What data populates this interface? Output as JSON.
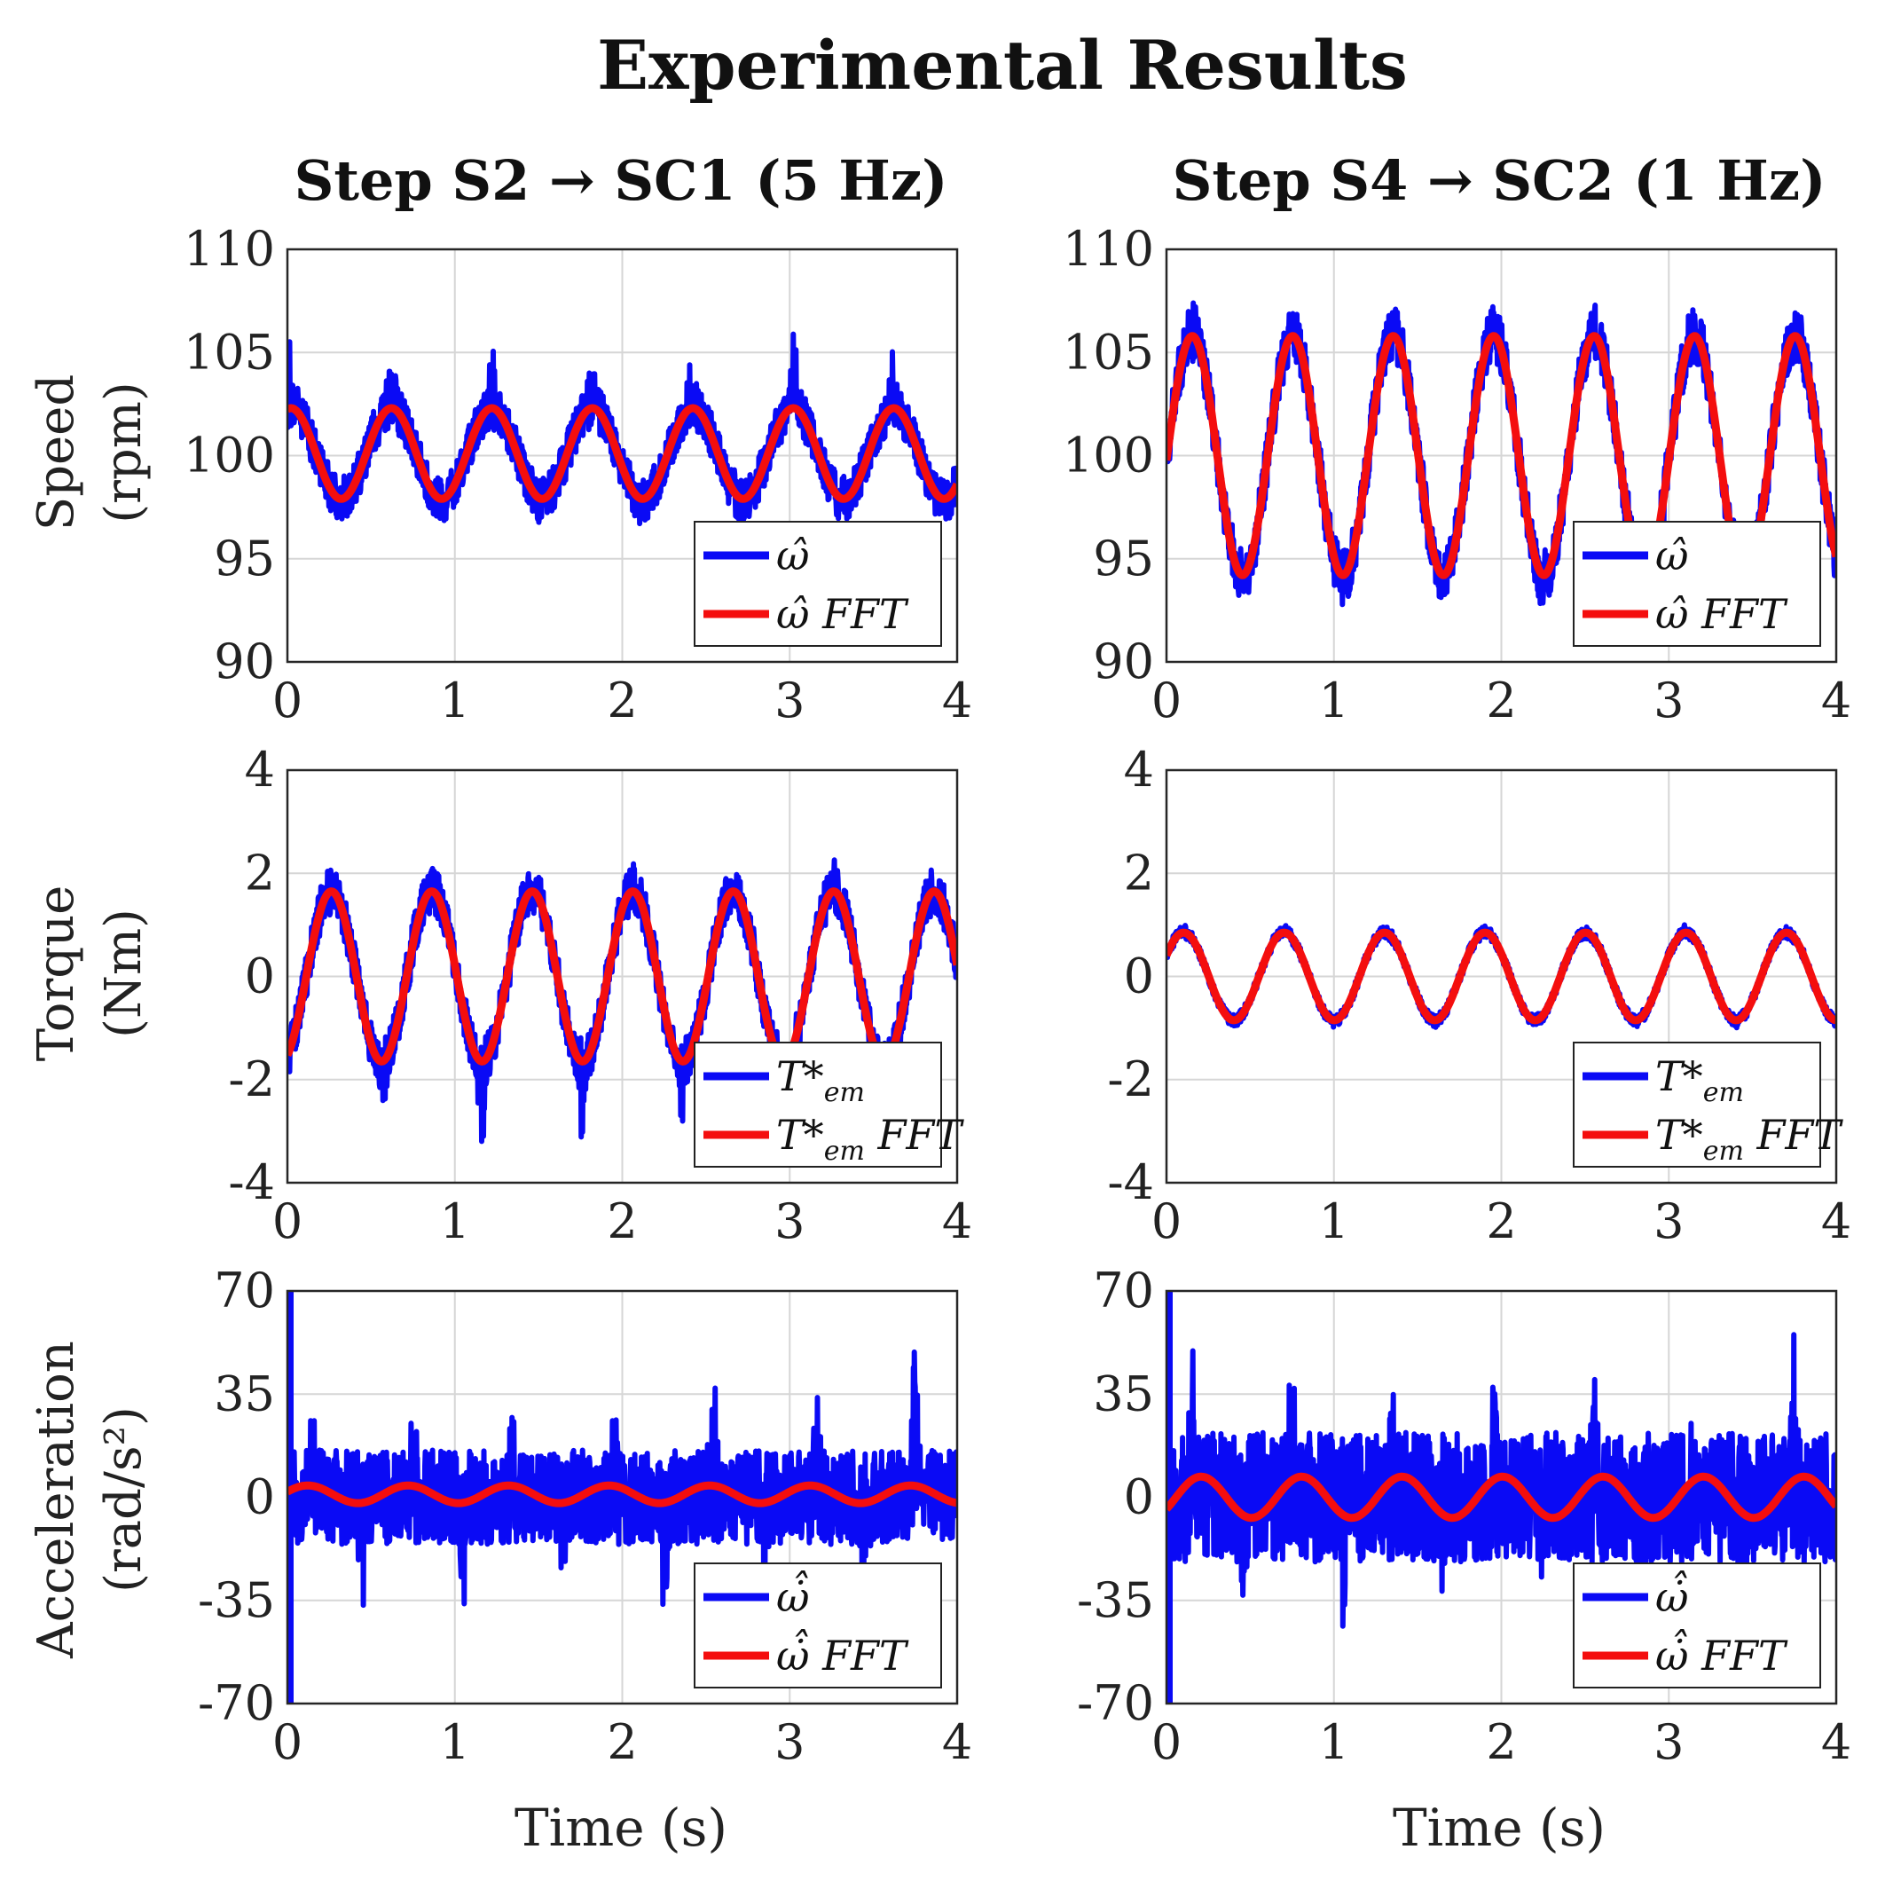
{
  "figure": {
    "title": "Experimental Results",
    "column_titles": [
      "Step S2 → SC1 (5 Hz)",
      "Step S4 → SC2 (1 Hz)"
    ],
    "row_ylabels": [
      [
        "Speed",
        "(rpm)"
      ],
      [
        "Torque",
        "(Nm)"
      ],
      [
        "Acceleration",
        "(rad/s²)"
      ]
    ],
    "xlabel": "Time (s)"
  },
  "colors": {
    "measured": "#0a0af5",
    "fft": "#f40e0e",
    "grid": "#d6d6d6",
    "axis": "#262626"
  },
  "chart_data": [
    {
      "id": "speed-s2",
      "type": "line",
      "ylim": [
        90,
        110
      ],
      "yticks": [
        "90",
        "95",
        "100",
        "105",
        "110"
      ],
      "xlim": [
        0,
        4
      ],
      "xticks": [
        "0",
        "1",
        "2",
        "3",
        "4"
      ],
      "grid": true,
      "legend_position": "bottom-right",
      "legend": [
        {
          "sym": "ω̂",
          "sub": "",
          "rest": ""
        },
        {
          "sym": "ω̂",
          "sub": "",
          "rest": "FFT"
        }
      ],
      "series": [
        {
          "name": "measured",
          "offset": 100.1,
          "amp": 2.2,
          "period": 0.6,
          "phase": 1.35,
          "noise": 1.1,
          "spike_up": 3.5,
          "spike_down": 0.5
        },
        {
          "name": "fft",
          "offset": 100.1,
          "amp": 2.2,
          "period": 0.6,
          "phase": 1.35
        }
      ]
    },
    {
      "id": "speed-s4",
      "type": "line",
      "ylim": [
        90,
        110
      ],
      "yticks": [
        "90",
        "95",
        "100",
        "105",
        "110"
      ],
      "xlim": [
        0,
        4
      ],
      "xticks": [
        "0",
        "1",
        "2",
        "3",
        "4"
      ],
      "grid": true,
      "legend_position": "bottom-right",
      "legend": [
        {
          "sym": "ω̂",
          "sub": "",
          "rest": ""
        },
        {
          "sym": "ω̂",
          "sub": "",
          "rest": "FFT"
        }
      ],
      "series": [
        {
          "name": "measured",
          "offset": 100,
          "amp": 5.8,
          "period": 0.6,
          "phase": -0.04,
          "noise": 1.3,
          "spike_up": 1.0,
          "spike_down": 0.8
        },
        {
          "name": "fft",
          "offset": 100,
          "amp": 5.8,
          "period": 0.6,
          "phase": -0.04
        }
      ]
    },
    {
      "id": "torque-s2",
      "type": "line",
      "ylim": [
        -4,
        4
      ],
      "yticks": [
        "-4",
        "-2",
        "0",
        "2",
        "4"
      ],
      "xlim": [
        0,
        4
      ],
      "xticks": [
        "0",
        "1",
        "2",
        "3",
        "4"
      ],
      "grid": true,
      "legend_position": "bottom-right",
      "legend": [
        {
          "sym": "T*",
          "sub": "em",
          "rest": ""
        },
        {
          "sym": "T*",
          "sub": "em",
          "rest": "FFT"
        }
      ],
      "series": [
        {
          "name": "measured",
          "offset": 0,
          "amp": 1.65,
          "period": 0.6,
          "phase": -1.18,
          "noise": 0.45,
          "spike_up": 0.2,
          "spike_down": 1.7
        },
        {
          "name": "fft",
          "offset": 0,
          "amp": 1.65,
          "period": 0.6,
          "phase": -1.18
        }
      ]
    },
    {
      "id": "torque-s4",
      "type": "line",
      "ylim": [
        -4,
        4
      ],
      "yticks": [
        "-4",
        "-2",
        "0",
        "2",
        "4"
      ],
      "xlim": [
        0,
        4
      ],
      "xticks": [
        "0",
        "1",
        "2",
        "3",
        "4"
      ],
      "grid": true,
      "legend_position": "bottom-right",
      "legend": [
        {
          "sym": "T*",
          "sub": "em",
          "rest": ""
        },
        {
          "sym": "T*",
          "sub": "em",
          "rest": "FFT"
        }
      ],
      "series": [
        {
          "name": "measured",
          "offset": 0,
          "amp": 0.85,
          "period": 0.6,
          "phase": 0.5,
          "noise": 0.12,
          "spike_up": 0.05,
          "spike_down": 0.05
        },
        {
          "name": "fft",
          "offset": 0,
          "amp": 0.85,
          "period": 0.6,
          "phase": 0.5
        }
      ]
    },
    {
      "id": "accel-s2",
      "type": "line",
      "ylim": [
        -70,
        70
      ],
      "yticks": [
        "-70",
        "-35",
        "0",
        "35",
        "70"
      ],
      "xlim": [
        0,
        4
      ],
      "xticks": [
        "0",
        "1",
        "2",
        "3",
        "4"
      ],
      "grid": true,
      "legend_position": "bottom-right",
      "legend": [
        {
          "sym": "ω̇̂",
          "sub": "",
          "rest": ""
        },
        {
          "sym": "ω̇̂",
          "sub": "",
          "rest": "FFT"
        }
      ],
      "series": [
        {
          "name": "measured",
          "offset": 0,
          "amp": 0,
          "period": 0.6,
          "phase": 0,
          "noise": 16,
          "spike_up": 45,
          "spike_down": 35
        },
        {
          "name": "fft",
          "offset": 1,
          "amp": 3,
          "period": 0.6,
          "phase": 0.3
        }
      ]
    },
    {
      "id": "accel-s4",
      "type": "line",
      "ylim": [
        -70,
        70
      ],
      "yticks": [
        "-70",
        "-35",
        "0",
        "35",
        "70"
      ],
      "xlim": [
        0,
        4
      ],
      "xticks": [
        "0",
        "1",
        "2",
        "3",
        "4"
      ],
      "grid": true,
      "legend_position": "bottom-right",
      "legend": [
        {
          "sym": "ω̇̂",
          "sub": "",
          "rest": ""
        },
        {
          "sym": "ω̇̂",
          "sub": "",
          "rest": "FFT"
        }
      ],
      "series": [
        {
          "name": "measured",
          "offset": 0,
          "amp": 0,
          "period": 0.6,
          "phase": 0,
          "noise": 22,
          "spike_up": 40,
          "spike_down": 28
        },
        {
          "name": "fft",
          "offset": 0,
          "amp": 7,
          "period": 0.6,
          "phase": -0.6
        }
      ]
    }
  ]
}
